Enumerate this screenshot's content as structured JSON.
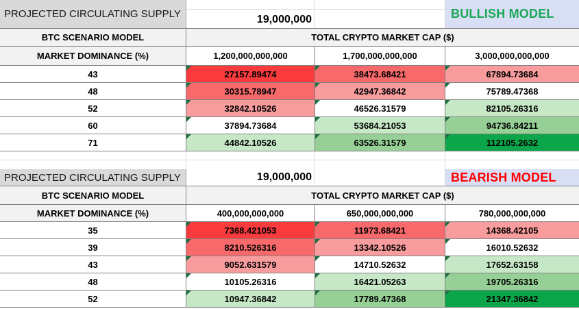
{
  "colors": {
    "grid": "#808080",
    "faint_grid": "#D9D9D9",
    "supply_bg": "#D9D9D9",
    "header_bg": "#F2F2F2",
    "model_bg": "#D8DEF3",
    "triangle": "#1D6F42",
    "scale": {
      "red1": "#FA3B3D",
      "red2": "#F8696B",
      "red3": "#F99C9E",
      "white": "#FFFFFF",
      "green3": "#C6E8C6",
      "green2": "#96D096",
      "green1": "#0CA64A"
    }
  },
  "tables": [
    {
      "name": "bullish",
      "supply_label": "PROJECTED CIRCULATING SUPPLY",
      "supply_value": "19,000,000",
      "model_label": "BULLISH MODEL",
      "model_color": "#1BA858",
      "scenario_label": "BTC SCENARIO MODEL",
      "market_cap_label": "TOTAL CRYPTO MARKET CAP ($)",
      "dominance_label": "MARKET DOMINANCE (%)",
      "market_caps": [
        "1,200,000,000,000",
        "1,700,000,000,000",
        "3,000,000,000,000"
      ],
      "rows": [
        {
          "dominance": "43",
          "values": [
            "27157.89474",
            "38473.68421",
            "67894.73684"
          ],
          "colors": [
            "red1",
            "red2",
            "red3"
          ]
        },
        {
          "dominance": "48",
          "values": [
            "30315.78947",
            "42947.36842",
            "75789.47368"
          ],
          "colors": [
            "red2",
            "red3",
            "white"
          ]
        },
        {
          "dominance": "52",
          "values": [
            "32842.10526",
            "46526.31579",
            "82105.26316"
          ],
          "colors": [
            "red3",
            "white",
            "green3"
          ]
        },
        {
          "dominance": "60",
          "values": [
            "37894.73684",
            "53684.21053",
            "94736.84211"
          ],
          "colors": [
            "white",
            "green3",
            "green2"
          ]
        },
        {
          "dominance": "71",
          "values": [
            "44842.10526",
            "63526.31579",
            "112105.2632"
          ],
          "colors": [
            "green3",
            "green2",
            "green1"
          ]
        }
      ]
    },
    {
      "name": "bearish",
      "supply_label": "PROJECTED CIRCULATING SUPPLY",
      "supply_value": "19,000,000",
      "model_label": "BEARISH MODEL",
      "model_color": "#FF0000",
      "scenario_label": "BTC SCENARIO MODEL",
      "market_cap_label": "TOTAL CRYPTO MARKET CAP ($)",
      "dominance_label": "MARKET DOMINANCE (%)",
      "market_caps": [
        "400,000,000,000",
        "650,000,000,000",
        "780,000,000,000"
      ],
      "rows": [
        {
          "dominance": "35",
          "values": [
            "7368.421053",
            "11973.68421",
            "14368.42105"
          ],
          "colors": [
            "red1",
            "red2",
            "red3"
          ]
        },
        {
          "dominance": "39",
          "values": [
            "8210.526316",
            "13342.10526",
            "16010.52632"
          ],
          "colors": [
            "red2",
            "red3",
            "white"
          ]
        },
        {
          "dominance": "43",
          "values": [
            "9052.631579",
            "14710.52632",
            "17652.63158"
          ],
          "colors": [
            "red3",
            "white",
            "green3"
          ]
        },
        {
          "dominance": "48",
          "values": [
            "10105.26316",
            "16421.05263",
            "19705.26316"
          ],
          "colors": [
            "white",
            "green3",
            "green2"
          ]
        },
        {
          "dominance": "52",
          "values": [
            "10947.36842",
            "17789.47368",
            "21347.36842"
          ],
          "colors": [
            "green3",
            "green2",
            "green1"
          ]
        }
      ]
    }
  ]
}
